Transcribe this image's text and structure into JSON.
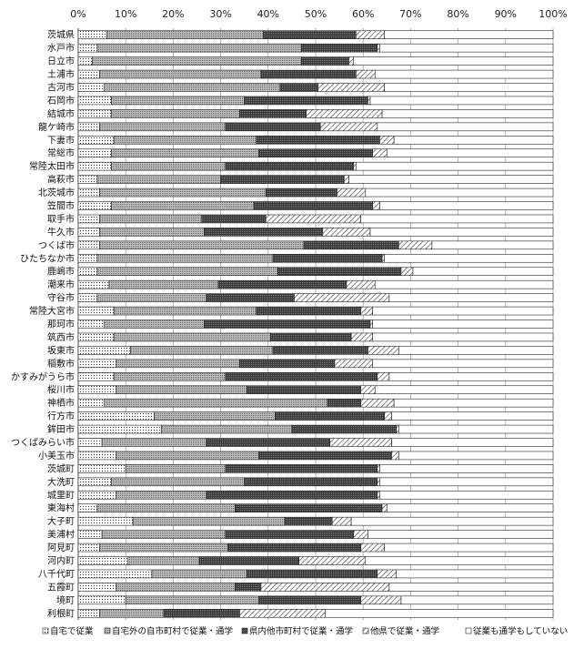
{
  "chart_data": {
    "type": "bar",
    "orientation": "horizontal",
    "stacked": true,
    "grid": true,
    "legend_position": "bottom",
    "xlim": [
      0,
      100
    ],
    "x_ticks": [
      "0%",
      "10%",
      "20%",
      "30%",
      "40%",
      "50%",
      "60%",
      "70%",
      "80%",
      "90%",
      "100%"
    ],
    "categories": [
      "茨城県",
      "水戸市",
      "日立市",
      "土浦市",
      "古河市",
      "石岡市",
      "結城市",
      "龍ケ崎市",
      "下妻市",
      "常総市",
      "常陸太田市",
      "高萩市",
      "北茨城市",
      "笠間市",
      "取手市",
      "牛久市",
      "つくば市",
      "ひたちなか市",
      "鹿嶋市",
      "潮来市",
      "守谷市",
      "常陸大宮市",
      "那珂市",
      "筑西市",
      "坂東市",
      "稲敷市",
      "かすみがうら市",
      "桜川市",
      "神栖市",
      "行方市",
      "鉾田市",
      "つくばみらい市",
      "小美玉市",
      "茨城町",
      "大洗町",
      "城里町",
      "東海村",
      "大子町",
      "美浦村",
      "阿見町",
      "河内町",
      "八千代町",
      "五霞町",
      "境町",
      "利根町"
    ],
    "series": [
      {
        "name": "自宅で従業",
        "pattern": "dots",
        "values": [
          6,
          4,
          3,
          4.5,
          5.5,
          7,
          7,
          4.5,
          7.5,
          7,
          7,
          4,
          4.5,
          7,
          4.5,
          4.5,
          4.5,
          4,
          4,
          6.5,
          4,
          7.5,
          5.5,
          7.5,
          11,
          8,
          7.5,
          8,
          5.5,
          16,
          17.5,
          5,
          8,
          10,
          7,
          8,
          4,
          11.5,
          5,
          4.5,
          10.5,
          15.5,
          8,
          10,
          4.5
        ]
      },
      {
        "name": "自宅外の自市町村で従業・通学",
        "pattern": "dense",
        "values": [
          33,
          43,
          44,
          34,
          37,
          28,
          27,
          26.5,
          30,
          31,
          24,
          26,
          35,
          30,
          21.5,
          22,
          43,
          37,
          38,
          23,
          23,
          30,
          21,
          33,
          30,
          26,
          23.5,
          27.5,
          47,
          25.5,
          27.5,
          22,
          30,
          21,
          28,
          19,
          29,
          32,
          26,
          27,
          15,
          20,
          25,
          28,
          13.5
        ]
      },
      {
        "name": "県内他市町村で従業・通学",
        "pattern": "solid",
        "values": [
          19.5,
          16,
          10,
          20,
          8,
          26,
          14,
          20,
          26,
          24,
          27,
          26,
          15,
          25,
          13.5,
          25,
          20,
          23,
          26,
          27,
          18.5,
          22,
          35,
          17,
          20,
          20,
          32,
          24,
          7,
          23,
          22,
          26,
          28,
          32,
          28,
          36,
          31,
          10,
          27,
          28,
          21,
          27.5,
          5.5,
          21.5,
          16
        ]
      },
      {
        "name": "他県で従業・通学",
        "pattern": "hatch",
        "values": [
          6,
          0.5,
          1,
          4,
          14,
          0.5,
          16,
          12,
          3,
          3,
          0.5,
          1,
          6,
          1.5,
          20,
          10,
          7,
          0.5,
          2.5,
          6,
          20,
          2.5,
          0.5,
          4.5,
          6.5,
          8,
          2.5,
          3,
          7,
          1.5,
          0.5,
          13,
          1.5,
          0.5,
          0.5,
          0.5,
          1,
          4,
          3,
          5,
          14,
          4,
          27,
          8.5,
          18
        ]
      },
      {
        "name": "従業も通学もしていない",
        "pattern": "none",
        "values": [
          35.5,
          36.5,
          42,
          37.5,
          35.5,
          38.5,
          36,
          37,
          33.5,
          35,
          41.5,
          43,
          39.5,
          36.5,
          40.5,
          38.5,
          25.5,
          35.5,
          29.5,
          37.5,
          34.5,
          38,
          38,
          38,
          32.5,
          38,
          34.5,
          37.5,
          33.5,
          34,
          32.5,
          34,
          32.5,
          36.5,
          36.5,
          36.5,
          35,
          42.5,
          39,
          35.5,
          39.5,
          33,
          34.5,
          32,
          48
        ]
      }
    ]
  },
  "colors": {
    "fill": "#ffffff",
    "dark": "#333333",
    "solid": "#4a4a4a",
    "dense": "#9a9a9a",
    "grid": "#999999"
  }
}
